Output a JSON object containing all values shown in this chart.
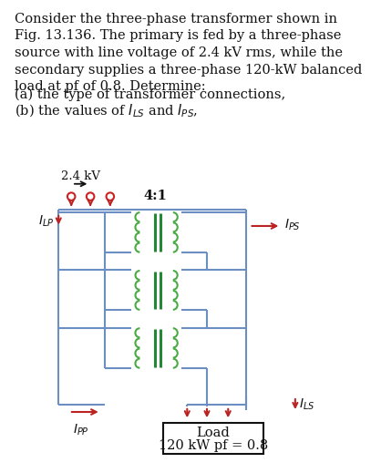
{
  "title_lines": [
    "Consider the three-phase transformer shown in",
    "Fig. 13.136. The primary is fed by a three-phase",
    "source with line voltage of 2.4 kV rms, while the",
    "secondary supplies a three-phase 120-kW balanced",
    "load at pf of 0.8. Determine:"
  ],
  "qa": "(a) the type of transformer connections,",
  "qb": "(b) the values of $I_{LS}$ and $I_{PS}$,",
  "label_24kv": "2.4 kV",
  "label_41": "4:1",
  "label_ILP": "$I_{LP}$",
  "label_IPS": "$I_{PS}$",
  "label_ILS": "$I_{LS}$",
  "label_IPP": "$I_{PP}$",
  "label_load1": "Load",
  "label_load2": "120 kW pf = 0.8",
  "wire_color": "#6b8fc2",
  "coil_color": "#4aaa44",
  "core_color": "#228833",
  "arrow_color": "#bb2222",
  "text_color": "#111111",
  "bg_color": "#ffffff",
  "circle_color": "#cc2222",
  "kv_arrow_color": "#111111"
}
